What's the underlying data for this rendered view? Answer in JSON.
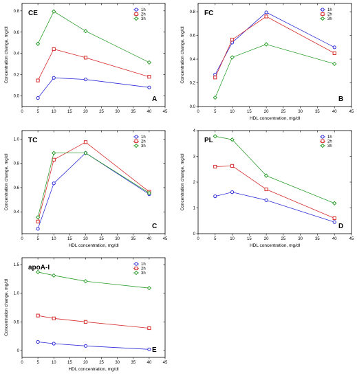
{
  "chart_data": [
    {
      "type": "line",
      "title": "CE",
      "letter": "A",
      "xlabel": "",
      "ylabel": "Concentration change, mg/dl",
      "x": [
        5,
        10,
        20,
        40
      ],
      "xlim": [
        0,
        45
      ],
      "ylim": [
        -0.1,
        0.87
      ],
      "xticks": [
        "0",
        "5",
        "10",
        "15",
        "20",
        "25",
        "30",
        "35",
        "40",
        "45"
      ],
      "yticks": [
        "0.0",
        "0.2",
        "0.4",
        "0.6",
        "0.8"
      ],
      "yticks_values": [
        0.0,
        0.2,
        0.4,
        0.6,
        0.8
      ],
      "series": [
        {
          "name": "1h",
          "color": "#2b2bd6",
          "marker": "circle",
          "values": [
            -0.02,
            0.17,
            0.155,
            0.08
          ]
        },
        {
          "name": "2h",
          "color": "#d62b2b",
          "marker": "square",
          "values": [
            0.145,
            0.44,
            0.36,
            0.18
          ]
        },
        {
          "name": "3h",
          "color": "#2e9e2e",
          "marker": "diamond",
          "values": [
            0.49,
            0.795,
            0.61,
            0.315
          ]
        }
      ]
    },
    {
      "type": "line",
      "title": "FC",
      "letter": "B",
      "xlabel": "HDL concentration, mg/dl",
      "ylabel": "Concentration change, mg/dl",
      "x": [
        5,
        10,
        20,
        40
      ],
      "xlim": [
        0,
        45
      ],
      "ylim": [
        0,
        0.87
      ],
      "xticks": [
        "0",
        "5",
        "10",
        "15",
        "20",
        "25",
        "30",
        "35",
        "40",
        "45"
      ],
      "yticks": [
        "0.0",
        "0.2",
        "0.4",
        "0.6",
        "0.8"
      ],
      "yticks_values": [
        0.0,
        0.2,
        0.4,
        0.6,
        0.8
      ],
      "series": [
        {
          "name": "1h",
          "color": "#2b2bd6",
          "marker": "circle",
          "values": [
            0.27,
            0.54,
            0.795,
            0.5
          ]
        },
        {
          "name": "2h",
          "color": "#d62b2b",
          "marker": "square",
          "values": [
            0.245,
            0.565,
            0.76,
            0.45
          ]
        },
        {
          "name": "3h",
          "color": "#2e9e2e",
          "marker": "diamond",
          "values": [
            0.075,
            0.415,
            0.525,
            0.36
          ]
        }
      ]
    },
    {
      "type": "line",
      "title": "TC",
      "letter": "C",
      "xlabel": "HDL concentration, mg/dl",
      "ylabel": "Concentration change, mg/dl",
      "x": [
        5,
        10,
        20,
        40
      ],
      "xlim": [
        0,
        45
      ],
      "ylim": [
        0.22,
        1.07
      ],
      "xticks": [
        "0",
        "5",
        "10",
        "15",
        "20",
        "25",
        "30",
        "35",
        "40",
        "45"
      ],
      "yticks": [
        "0.4",
        "0.6",
        "0.8",
        "1.0"
      ],
      "yticks_values": [
        0.4,
        0.6,
        0.8,
        1.0
      ],
      "series": [
        {
          "name": "1h",
          "color": "#2b2bd6",
          "marker": "circle",
          "values": [
            0.26,
            0.635,
            0.885,
            0.545
          ]
        },
        {
          "name": "2h",
          "color": "#d62b2b",
          "marker": "square",
          "values": [
            0.32,
            0.83,
            0.975,
            0.565
          ]
        },
        {
          "name": "3h",
          "color": "#2e9e2e",
          "marker": "diamond",
          "values": [
            0.355,
            0.885,
            0.885,
            0.555
          ]
        }
      ]
    },
    {
      "type": "line",
      "title": "PL",
      "letter": "D",
      "xlabel": "HDL concentration, mg/dl",
      "ylabel": "Concentration change, mg/dl",
      "x": [
        5,
        10,
        20,
        40
      ],
      "xlim": [
        0,
        45
      ],
      "ylim": [
        0,
        4
      ],
      "xticks": [
        "0",
        "5",
        "10",
        "15",
        "20",
        "25",
        "30",
        "35",
        "40",
        "45"
      ],
      "yticks": [
        "0",
        "1",
        "2",
        "3",
        "4"
      ],
      "yticks_values": [
        0,
        1,
        2,
        3,
        4
      ],
      "series": [
        {
          "name": "1h",
          "color": "#2b2bd6",
          "marker": "circle",
          "values": [
            1.45,
            1.61,
            1.3,
            0.45
          ]
        },
        {
          "name": "2h",
          "color": "#d62b2b",
          "marker": "square",
          "values": [
            2.6,
            2.63,
            1.72,
            0.6
          ]
        },
        {
          "name": "3h",
          "color": "#2e9e2e",
          "marker": "diamond",
          "values": [
            3.78,
            3.65,
            2.25,
            1.18
          ]
        }
      ]
    },
    {
      "type": "line",
      "title": "apoA-I",
      "letter": "E",
      "xlabel": "HDL concentration, mg/dl",
      "ylabel": "Concentration change, mg/dl",
      "x": [
        5,
        10,
        20,
        40
      ],
      "xlim": [
        0,
        45
      ],
      "ylim": [
        -0.12,
        1.62
      ],
      "xticks": [
        "0",
        "5",
        "10",
        "15",
        "20",
        "25",
        "30",
        "35",
        "40",
        "45"
      ],
      "yticks": [
        "0",
        "0.5",
        "1.0",
        "1.5"
      ],
      "yticks_values": [
        0,
        0.5,
        1.0,
        1.5
      ],
      "series": [
        {
          "name": "1h",
          "color": "#2b2bd6",
          "marker": "circle",
          "values": [
            0.15,
            0.12,
            0.08,
            0.02
          ]
        },
        {
          "name": "2h",
          "color": "#d62b2b",
          "marker": "square",
          "values": [
            0.61,
            0.56,
            0.5,
            0.39
          ]
        },
        {
          "name": "3h",
          "color": "#2e9e2e",
          "marker": "diamond",
          "values": [
            1.37,
            1.31,
            1.21,
            1.09
          ]
        }
      ]
    }
  ]
}
